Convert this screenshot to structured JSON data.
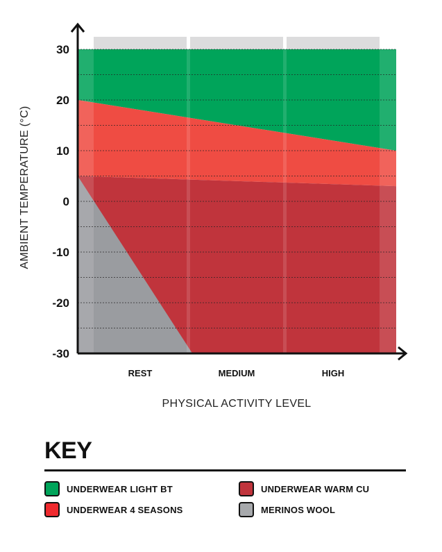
{
  "chart_data": {
    "type": "area",
    "categories": [
      "REST",
      "MEDIUM",
      "HIGH"
    ],
    "xlabel": "PHYSICAL ACTIVITY LEVEL",
    "ylabel": "AMBIENT TEMPERATURE (°C)",
    "ylim": [
      -30,
      30
    ],
    "yticks": [
      "30",
      "20",
      "10",
      "0",
      "-10",
      "-20",
      "-30"
    ],
    "grid": "dotted horizontal",
    "series": [
      {
        "name": "UNDERWEAR LIGHT BT",
        "color": "#00a45a",
        "x": [
          0,
          1
        ],
        "upper": [
          30,
          30
        ],
        "lower": [
          20,
          10
        ]
      },
      {
        "name": "UNDERWEAR 4 SEASONS",
        "color": "#ef4c43",
        "x": [
          0,
          1
        ],
        "upper": [
          20,
          10
        ],
        "lower": [
          5,
          3
        ]
      },
      {
        "name": "UNDERWEAR WARM CU",
        "color": "#c0343c",
        "x": [
          0,
          1
        ],
        "upper": [
          5,
          3
        ],
        "lower": [
          -30,
          -30
        ]
      },
      {
        "name": "MERINOS WOOL",
        "color": "#9a9ca0",
        "x": [
          0,
          0.36
        ],
        "upper": [
          5,
          -30
        ],
        "lower": [
          -30,
          -30
        ]
      }
    ]
  },
  "key": {
    "title": "KEY",
    "items": [
      {
        "label": "UNDERWEAR LIGHT BT",
        "color": "#00a45a"
      },
      {
        "label": "UNDERWEAR WARM CU",
        "color": "#c0343c"
      },
      {
        "label": "UNDERWEAR 4 SEASONS",
        "color": "#ef2a2e"
      },
      {
        "label": "MERINOS WOOL",
        "color": "#a7a9ac"
      }
    ]
  }
}
